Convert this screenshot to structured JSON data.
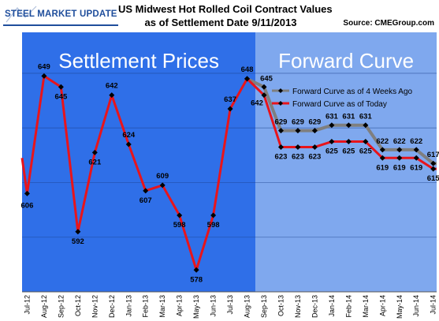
{
  "header": {
    "logo_text": "STEEL MARKET UPDATE",
    "title_line1": "US Midwest Hot Rolled Coil Contract Values",
    "title_line2": "as of Settlement Date 9/11/2013",
    "source": "Source: CMEGroup.com"
  },
  "colors": {
    "settlement_bg": "#2f6fe8",
    "forward_bg": "#7fa8ee",
    "today_line": "#e8141b",
    "weeks_ago_line": "#7f7f7f",
    "marker": "#000000",
    "logo_blue": "#1f4e9c"
  },
  "chart_data": {
    "type": "line",
    "title": "US Midwest Hot Rolled Coil Contract Values as of Settlement Date 9/11/2013",
    "regions": [
      {
        "label": "Settlement Prices",
        "from": "Jul-12",
        "to": "Aug-13"
      },
      {
        "label": "Forward Curve",
        "from": "Sep-13",
        "to": "Jul-14"
      }
    ],
    "categories": [
      "Jul-12",
      "Aug-12",
      "Sep-12",
      "Oct-12",
      "Nov-12",
      "Dec-12",
      "Jan-13",
      "Feb-13",
      "Mar-13",
      "Apr-13",
      "May-13",
      "Jun-13",
      "Jul-13",
      "Aug-13",
      "Sep-13",
      "Oct-13",
      "Nov-13",
      "Dec-13",
      "Jan-14",
      "Feb-14",
      "Mar-14",
      "Apr-14",
      "May-14",
      "Jun-14",
      "Jul-14"
    ],
    "ylim": [
      570,
      665
    ],
    "grid": true,
    "legend_position": "top-right",
    "series": [
      {
        "name": "Forward Curve as of 4 Weeks Ago",
        "color": "#7f7f7f",
        "values": [
          null,
          null,
          null,
          null,
          null,
          null,
          null,
          null,
          null,
          null,
          null,
          null,
          null,
          648,
          645,
          629,
          629,
          629,
          631,
          631,
          631,
          622,
          622,
          622,
          617
        ],
        "labels": [
          null,
          null,
          null,
          null,
          null,
          null,
          null,
          null,
          null,
          null,
          null,
          null,
          null,
          null,
          "645",
          "629",
          "629",
          "629",
          "631",
          "631",
          "631",
          "622",
          "622",
          "622",
          "617"
        ]
      },
      {
        "name": "Forward Curve as of Today",
        "color": "#e8141b",
        "values": [
          606,
          649,
          645,
          592,
          621,
          642,
          624,
          607,
          609,
          598,
          578,
          598,
          637,
          648,
          642,
          623,
          623,
          623,
          625,
          625,
          625,
          619,
          619,
          619,
          615
        ],
        "labels": [
          "606",
          "649",
          "645",
          "592",
          "621",
          "642",
          "624",
          "607",
          "609",
          "598",
          "578",
          "598",
          "637",
          "648",
          "642",
          "623",
          "623",
          "623",
          "625",
          "625",
          "625",
          "619",
          "619",
          "619",
          "615"
        ]
      }
    ]
  }
}
